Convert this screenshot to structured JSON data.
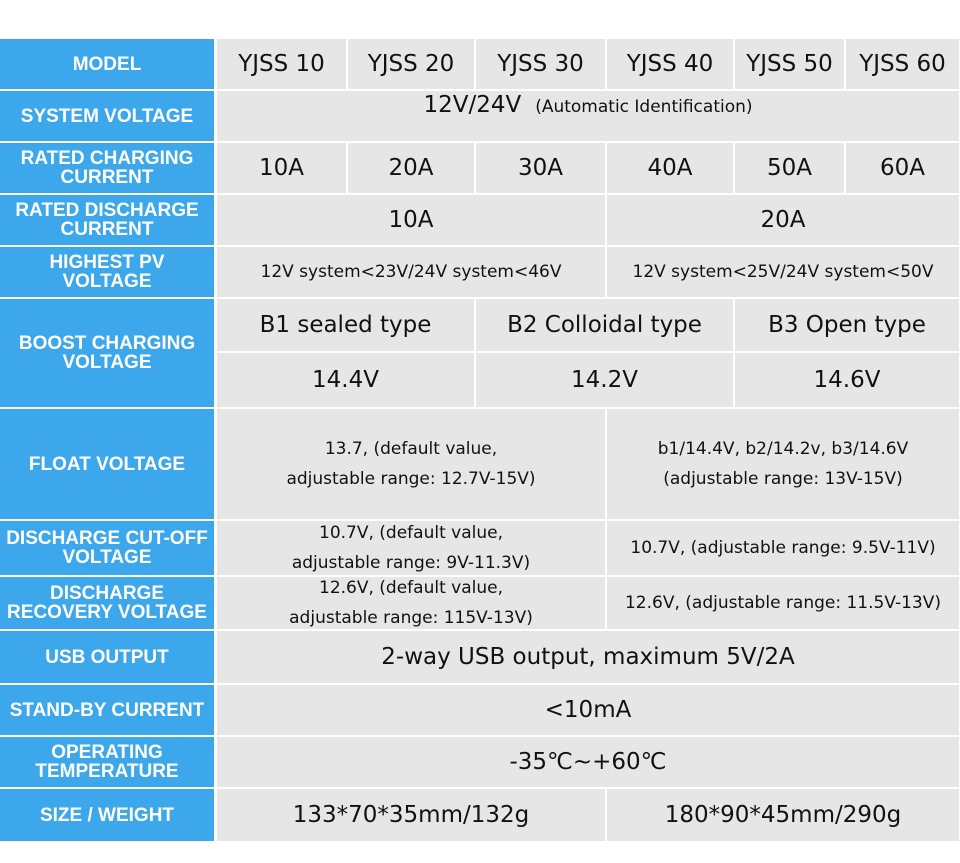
{
  "table": {
    "rows": [
      {
        "label": "MODEL",
        "cells": [
          [
            "YJSS 10"
          ],
          [
            "YJSS 20"
          ],
          [
            "YJSS 30"
          ],
          [
            "YJSS 40"
          ],
          [
            "YJSS 50"
          ],
          [
            "YJSS 60"
          ]
        ]
      },
      {
        "label": "SYSTEM VOLTAGE",
        "cells": [
          [
            "12V/24V",
            "(Automatic Identification)"
          ]
        ]
      },
      {
        "label": "RATED CHARGING CURRENT",
        "cells": [
          [
            "10A"
          ],
          [
            "20A"
          ],
          [
            "30A"
          ],
          [
            "40A"
          ],
          [
            "50A"
          ],
          [
            "60A"
          ]
        ]
      },
      {
        "label": "RATED DISCHARGE CURRENT",
        "cells": [
          [
            "10A"
          ],
          [
            "20A"
          ]
        ]
      },
      {
        "label": "HIGHEST PV VOLTAGE",
        "cells": [
          [
            "12V system<23V/24V system<46V"
          ],
          [
            "12V system<25V/24V system<50V"
          ]
        ]
      },
      {
        "label": "BOOST CHARGING VOLTAGE",
        "cells": [
          [
            "B1 sealed type"
          ],
          [
            "B2 Colloidal type"
          ],
          [
            "B3 Open type"
          ],
          [
            "14.4V"
          ],
          [
            "14.2V"
          ],
          [
            "14.6V"
          ]
        ]
      },
      {
        "label": "FLOAT VOLTAGE",
        "cells": [
          [
            "13.7, (default value,",
            "adjustable range: 12.7V-15V)"
          ],
          [
            "b1/14.4V, b2/14.2v, b3/14.6V",
            "(adjustable range: 13V-15V)"
          ]
        ]
      },
      {
        "label": "DISCHARGE CUT-OFF VOLTAGE",
        "cells": [
          [
            "10.7V, (default value,",
            "adjustable range: 9V-11.3V)"
          ],
          [
            "10.7V, (adjustable range: 9.5V-11V)"
          ]
        ]
      },
      {
        "label": "DISCHARGE RECOVERY VOLTAGE",
        "cells": [
          [
            "12.6V, (default value,",
            "adjustable range: 115V-13V)"
          ],
          [
            "12.6V, (adjustable range: 11.5V-13V)"
          ]
        ]
      },
      {
        "label": "USB OUTPUT",
        "cells": [
          [
            "2-way USB output, maximum 5V/2A"
          ]
        ]
      },
      {
        "label": "STAND-BY CURRENT",
        "cells": [
          [
            "<10mA"
          ]
        ]
      },
      {
        "label": "OPERATING TEMPERATURE",
        "cells": [
          [
            "-35℃~+60℃"
          ]
        ]
      },
      {
        "label": "SIZE / WEIGHT",
        "cells": [
          [
            "133*70*35mm/132g"
          ],
          [
            "180*90*45mm/290g"
          ]
        ]
      }
    ]
  }
}
